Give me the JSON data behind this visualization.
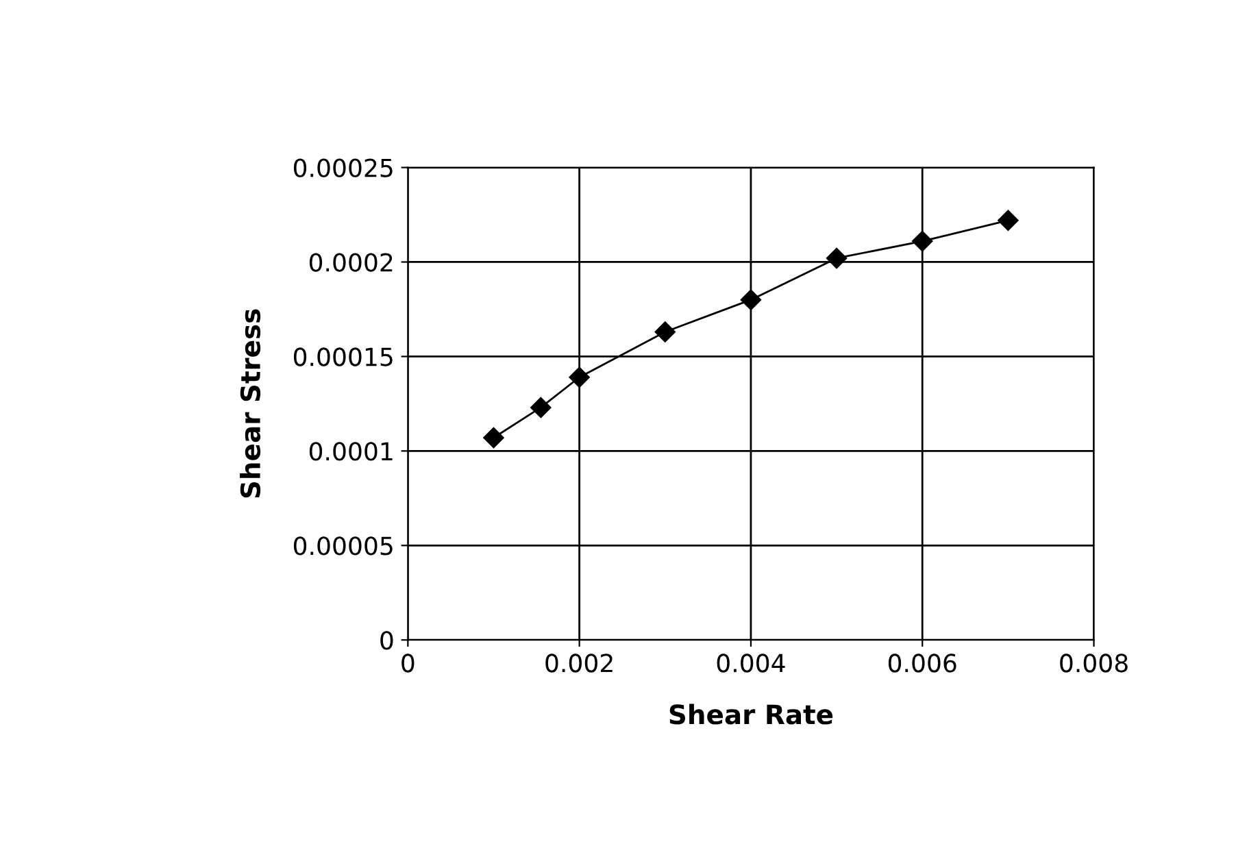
{
  "chart_data": {
    "type": "line",
    "xlabel": "Shear Rate",
    "ylabel": "Shear Stress",
    "x": [
      0.001,
      0.00155,
      0.002,
      0.003,
      0.004,
      0.005,
      0.006,
      0.007
    ],
    "series": [
      {
        "color": "#000000",
        "values": [
          0.000107,
          0.000123,
          0.000139,
          0.000163,
          0.00018,
          0.000202,
          0.000211,
          0.000222
        ]
      }
    ],
    "xlim": [
      0,
      0.008
    ],
    "xticks": [
      {
        "value": 0,
        "label": "0"
      },
      {
        "value": 0.002,
        "label": "0.002"
      },
      {
        "value": 0.004,
        "label": "0.004"
      },
      {
        "value": 0.006,
        "label": "0.006"
      },
      {
        "value": 0.008,
        "label": "0.008"
      }
    ],
    "ylim": [
      0,
      0.00025
    ],
    "yticks": [
      {
        "value": 0,
        "label": "0"
      },
      {
        "value": 5e-05,
        "label": "0.00005"
      },
      {
        "value": 0.0001,
        "label": "0.0001"
      },
      {
        "value": 0.00015,
        "label": "0.00015"
      },
      {
        "value": 0.0002,
        "label": "0.0002"
      },
      {
        "value": 0.00025,
        "label": "0.00025"
      }
    ],
    "grid": true,
    "marker": "diamond",
    "line_style": "solid",
    "legend": false
  }
}
